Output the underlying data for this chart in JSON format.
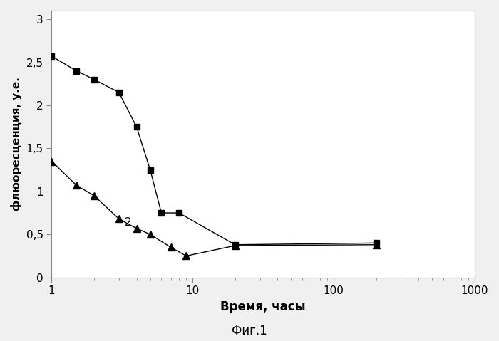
{
  "series1_x": [
    1,
    1.5,
    2,
    3,
    4,
    5,
    6,
    8,
    20,
    200
  ],
  "series1_y": [
    2.57,
    2.4,
    2.3,
    2.15,
    1.75,
    1.25,
    0.75,
    0.75,
    0.38,
    0.4
  ],
  "series2_x": [
    1,
    1.5,
    2,
    3,
    4,
    5,
    7,
    9,
    20,
    200
  ],
  "series2_y": [
    1.35,
    1.07,
    0.95,
    0.68,
    0.57,
    0.5,
    0.35,
    0.25,
    0.37,
    0.38
  ],
  "xlabel": "Время, часы",
  "ylabel": "флюоресценция, у.е.",
  "figcaption": "Фиг.1",
  "label2": "2",
  "yticks": [
    0,
    0.5,
    1.0,
    1.5,
    2.0,
    2.5,
    3.0
  ],
  "ytick_labels": [
    "0",
    "0,5",
    "1",
    "1,5",
    "2",
    "2,5",
    "3"
  ],
  "ylim": [
    0,
    3.1
  ],
  "xlim_log": [
    1,
    1000
  ],
  "background_color": "#f0f0f0",
  "plot_bg_color": "#ffffff",
  "line_color": "#000000",
  "border_color": "#888888"
}
